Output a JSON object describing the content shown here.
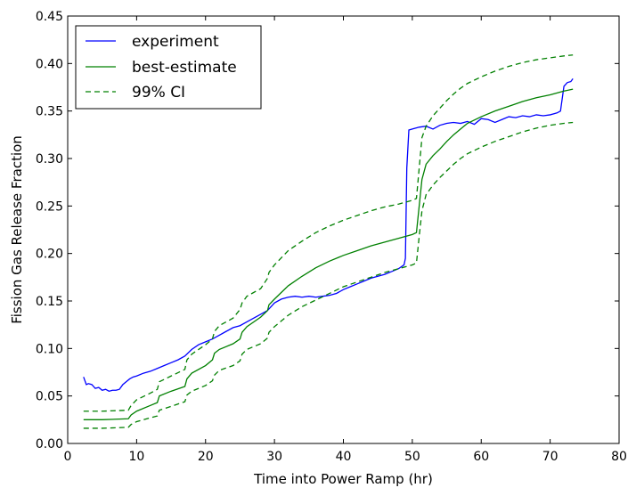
{
  "chart_data": {
    "type": "line",
    "xlabel": "Time into Power Ramp (hr)",
    "ylabel": "Fission Gas Release Fraction",
    "xlim": [
      0,
      80
    ],
    "ylim": [
      0,
      0.45
    ],
    "xticks": [
      "0",
      "10",
      "20",
      "30",
      "40",
      "50",
      "60",
      "70",
      "80"
    ],
    "yticks": [
      "0.00",
      "0.05",
      "0.10",
      "0.15",
      "0.20",
      "0.25",
      "0.30",
      "0.35",
      "0.40",
      "0.45"
    ],
    "grid": false,
    "legend_position": "top-left",
    "series": [
      {
        "name": "experiment",
        "color": "#0000ff",
        "style": "solid",
        "x": [
          2.3,
          2.7,
          3.0,
          3.5,
          4.0,
          4.5,
          5.0,
          5.5,
          6.0,
          6.5,
          7.0,
          7.5,
          8.0,
          8.5,
          9.0,
          9.5,
          10.0,
          11,
          12,
          13,
          14,
          15,
          16,
          17,
          18,
          19,
          20,
          21,
          22,
          23,
          24,
          25,
          26,
          27,
          28,
          29,
          30,
          31,
          32,
          33,
          34,
          35,
          36,
          37,
          38,
          39,
          40,
          41,
          42,
          43,
          44,
          45,
          46,
          47,
          48,
          48.8,
          49.0,
          49.2,
          49.5,
          50.0,
          51,
          52,
          53,
          54,
          55,
          56,
          57,
          58,
          59,
          60,
          61,
          62,
          63,
          64,
          65,
          66,
          67,
          68,
          69,
          70,
          71,
          71.5,
          72.0,
          72.5,
          73.0,
          73.3
        ],
        "y": [
          0.07,
          0.062,
          0.063,
          0.062,
          0.058,
          0.059,
          0.056,
          0.057,
          0.055,
          0.056,
          0.056,
          0.057,
          0.062,
          0.065,
          0.068,
          0.07,
          0.071,
          0.074,
          0.076,
          0.079,
          0.082,
          0.085,
          0.088,
          0.092,
          0.099,
          0.104,
          0.107,
          0.11,
          0.114,
          0.118,
          0.122,
          0.124,
          0.128,
          0.132,
          0.136,
          0.14,
          0.148,
          0.152,
          0.154,
          0.155,
          0.154,
          0.155,
          0.154,
          0.155,
          0.156,
          0.158,
          0.162,
          0.165,
          0.168,
          0.171,
          0.174,
          0.176,
          0.178,
          0.181,
          0.184,
          0.188,
          0.195,
          0.29,
          0.33,
          0.331,
          0.333,
          0.334,
          0.331,
          0.335,
          0.337,
          0.338,
          0.337,
          0.339,
          0.336,
          0.342,
          0.341,
          0.338,
          0.341,
          0.344,
          0.343,
          0.345,
          0.344,
          0.346,
          0.345,
          0.346,
          0.348,
          0.35,
          0.376,
          0.38,
          0.381,
          0.384
        ]
      },
      {
        "name": "best-estimate",
        "color": "#008000",
        "style": "solid",
        "x": [
          2.3,
          5,
          8.8,
          9.2,
          10,
          12,
          13,
          13.3,
          15,
          17,
          17.3,
          18,
          20,
          21,
          21.3,
          22,
          24,
          25,
          25.3,
          26,
          28,
          29,
          29.2,
          30,
          32,
          34,
          36,
          38,
          40,
          42,
          44,
          46,
          48,
          50,
          50.6,
          51,
          51.4,
          52,
          53,
          54,
          55,
          56,
          57,
          58,
          60,
          62,
          64,
          66,
          68,
          70,
          72,
          73.3
        ],
        "y": [
          0.025,
          0.025,
          0.026,
          0.03,
          0.034,
          0.04,
          0.043,
          0.05,
          0.055,
          0.06,
          0.068,
          0.074,
          0.082,
          0.088,
          0.095,
          0.099,
          0.105,
          0.11,
          0.117,
          0.123,
          0.133,
          0.14,
          0.146,
          0.152,
          0.166,
          0.176,
          0.185,
          0.192,
          0.198,
          0.203,
          0.208,
          0.212,
          0.216,
          0.22,
          0.222,
          0.25,
          0.278,
          0.294,
          0.303,
          0.31,
          0.318,
          0.325,
          0.331,
          0.337,
          0.344,
          0.35,
          0.355,
          0.36,
          0.364,
          0.367,
          0.371,
          0.373
        ]
      },
      {
        "name": "99% CI",
        "color": "#008000",
        "style": "dashed",
        "x": [
          2.3,
          5,
          8.8,
          9.2,
          10,
          12,
          13,
          13.3,
          15,
          17,
          17.3,
          18,
          20,
          21,
          21.3,
          22,
          24,
          25,
          25.3,
          26,
          28,
          29,
          29.2,
          30,
          32,
          34,
          36,
          38,
          40,
          42,
          44,
          46,
          48,
          50,
          50.6,
          51,
          51.4,
          52,
          53,
          54,
          55,
          56,
          57,
          58,
          60,
          62,
          64,
          66,
          68,
          70,
          72,
          73.3
        ],
        "y": [
          0.034,
          0.034,
          0.035,
          0.04,
          0.046,
          0.053,
          0.057,
          0.065,
          0.071,
          0.078,
          0.088,
          0.094,
          0.104,
          0.11,
          0.118,
          0.124,
          0.132,
          0.141,
          0.148,
          0.155,
          0.163,
          0.174,
          0.18,
          0.188,
          0.203,
          0.213,
          0.222,
          0.229,
          0.235,
          0.24,
          0.245,
          0.249,
          0.252,
          0.256,
          0.258,
          0.29,
          0.322,
          0.334,
          0.345,
          0.353,
          0.361,
          0.368,
          0.374,
          0.379,
          0.386,
          0.392,
          0.397,
          0.401,
          0.404,
          0.406,
          0.408,
          0.409
        ]
      },
      {
        "name": "",
        "color": "#008000",
        "style": "dashed",
        "x": [
          2.3,
          5,
          8.8,
          9.2,
          10,
          12,
          13,
          13.3,
          15,
          17,
          17.3,
          18,
          20,
          21,
          21.3,
          22,
          24,
          25,
          25.3,
          26,
          28,
          29,
          29.2,
          30,
          32,
          34,
          36,
          38,
          40,
          42,
          44,
          46,
          48,
          50,
          50.6,
          51,
          51.4,
          52,
          53,
          54,
          55,
          56,
          57,
          58,
          60,
          62,
          64,
          66,
          68,
          70,
          72,
          73.3
        ],
        "y": [
          0.016,
          0.016,
          0.017,
          0.02,
          0.023,
          0.027,
          0.029,
          0.035,
          0.039,
          0.044,
          0.051,
          0.055,
          0.061,
          0.066,
          0.072,
          0.077,
          0.082,
          0.087,
          0.094,
          0.099,
          0.105,
          0.111,
          0.117,
          0.123,
          0.135,
          0.144,
          0.151,
          0.158,
          0.165,
          0.17,
          0.175,
          0.18,
          0.184,
          0.188,
          0.19,
          0.218,
          0.245,
          0.262,
          0.272,
          0.28,
          0.287,
          0.294,
          0.3,
          0.305,
          0.312,
          0.318,
          0.323,
          0.328,
          0.332,
          0.335,
          0.337,
          0.338
        ]
      }
    ],
    "legend": [
      {
        "label": "experiment",
        "color": "#0000ff",
        "style": "solid"
      },
      {
        "label": "best-estimate",
        "color": "#008000",
        "style": "solid"
      },
      {
        "label": "99% CI",
        "color": "#008000",
        "style": "dashed"
      }
    ]
  }
}
